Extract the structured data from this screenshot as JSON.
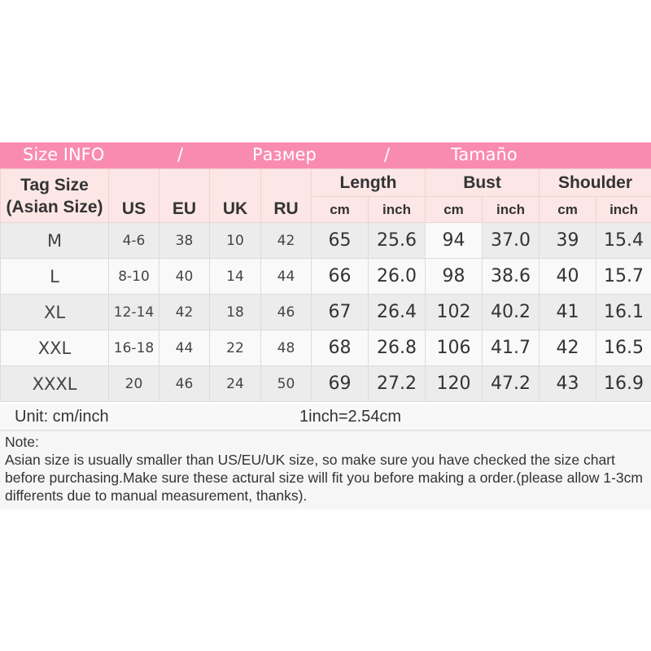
{
  "banner": {
    "en": "Size INFO",
    "sep1": "/",
    "ru": "Размер",
    "sep2": "/",
    "es": "Tamaño"
  },
  "colors": {
    "banner": "#f98bb1",
    "header_bg": "#fde6e6",
    "row_gray": "#ececec",
    "row_white": "#f9f9f9"
  },
  "header": {
    "tag_size": "Tag Size",
    "asian_size": "(Asian Size)",
    "us": "US",
    "eu": "EU",
    "uk": "UK",
    "ru": "RU",
    "length": "Length",
    "bust": "Bust",
    "shoulder": "Shoulder",
    "cm": "cm",
    "inch": "inch"
  },
  "rows": [
    [
      "M",
      "4-6",
      "38",
      "10",
      "42",
      "65",
      "25.6",
      "94",
      "37.0",
      "39",
      "15.4"
    ],
    [
      "L",
      "8-10",
      "40",
      "14",
      "44",
      "66",
      "26.0",
      "98",
      "38.6",
      "40",
      "15.7"
    ],
    [
      "XL",
      "12-14",
      "42",
      "18",
      "46",
      "67",
      "26.4",
      "102",
      "40.2",
      "41",
      "16.1"
    ],
    [
      "XXL",
      "16-18",
      "44",
      "22",
      "48",
      "68",
      "26.8",
      "106",
      "41.7",
      "42",
      "16.5"
    ],
    [
      "XXXL",
      "20",
      "46",
      "24",
      "50",
      "69",
      "27.2",
      "120",
      "47.2",
      "43",
      "16.9"
    ]
  ],
  "unit": {
    "label": "Unit: cm/inch",
    "conversion": "1inch=2.54cm"
  },
  "note": {
    "title": "Note:",
    "text": "Asian size is usually smaller than US/EU/UK size, so make sure you have checked the size chart before purchasing.Make sure these actural size will fit you before making a order.(please allow 1-3cm differents due to manual measurement, thanks)."
  }
}
